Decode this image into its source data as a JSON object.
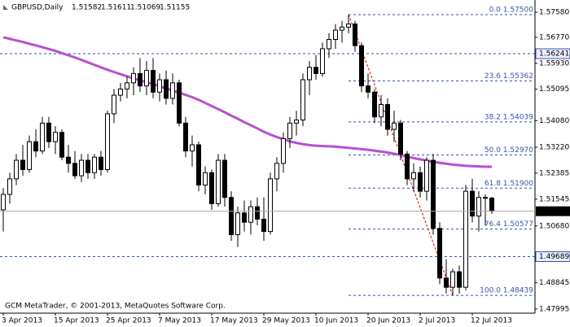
{
  "chart_data": {
    "type": "candlestick",
    "title": "GBPUSD,Daily",
    "footer": "GCM MetaTrader, © 2001-2013, MetaQuotes Software Corp.",
    "categories": [
      "3 Apr 2013",
      null,
      null,
      null,
      null,
      null,
      null,
      null,
      "15 Apr 2013",
      null,
      null,
      null,
      null,
      null,
      null,
      null,
      "25 Apr 2013",
      null,
      null,
      null,
      null,
      null,
      null,
      null,
      "7 May 2013",
      null,
      null,
      null,
      null,
      null,
      null,
      null,
      "17 May 2013",
      null,
      null,
      null,
      null,
      null,
      null,
      null,
      "29 May 2013",
      null,
      null,
      null,
      null,
      null,
      null,
      null,
      "10 Jun 2013",
      null,
      null,
      null,
      null,
      null,
      null,
      null,
      "20 Jun 2013",
      null,
      null,
      null,
      null,
      null,
      null,
      null,
      "2 Jul 2013",
      null,
      null,
      null,
      null,
      null,
      null,
      null,
      "12 Jul 2013",
      null,
      null,
      null
    ],
    "open": [
      1.512,
      1.517,
      1.522,
      1.528,
      1.525,
      1.534,
      1.531,
      1.54,
      1.534,
      1.537,
      1.529,
      1.527,
      1.523,
      1.528,
      1.524,
      1.529,
      1.525,
      1.543,
      1.549,
      1.551,
      1.553,
      1.556,
      1.552,
      1.557,
      1.55,
      1.554,
      1.548,
      1.553,
      1.54,
      1.531,
      1.533,
      1.52,
      1.524,
      1.514,
      1.528,
      1.516,
      1.504,
      1.511,
      1.508,
      1.513,
      1.509,
      1.505,
      1.522,
      1.527,
      1.535,
      1.54,
      1.541,
      1.554,
      1.558,
      1.556,
      1.564,
      1.567,
      1.57,
      1.571,
      1.572,
      1.565,
      1.552,
      1.55,
      1.542,
      1.546,
      1.538,
      1.54,
      1.53,
      1.522,
      1.524,
      1.518,
      1.528,
      1.506,
      1.49,
      1.487,
      1.492,
      1.487,
      1.518,
      1.51,
      1.516,
      1.51582
    ],
    "high": [
      1.519,
      1.524,
      1.53,
      1.533,
      1.536,
      1.538,
      1.542,
      1.542,
      1.539,
      1.538,
      1.533,
      1.531,
      1.53,
      1.53,
      1.53,
      1.531,
      1.544,
      1.551,
      1.553,
      1.555,
      1.558,
      1.561,
      1.56,
      1.561,
      1.556,
      1.557,
      1.556,
      1.554,
      1.542,
      1.536,
      1.534,
      1.526,
      1.525,
      1.53,
      1.53,
      1.518,
      1.513,
      1.515,
      1.515,
      1.516,
      1.516,
      1.524,
      1.529,
      1.537,
      1.542,
      1.544,
      1.556,
      1.56,
      1.562,
      1.566,
      1.569,
      1.572,
      1.573,
      1.575,
      1.573,
      1.566,
      1.556,
      1.551,
      1.549,
      1.548,
      1.544,
      1.541,
      1.531,
      1.527,
      1.526,
      1.529,
      1.53,
      1.508,
      1.496,
      1.493,
      1.494,
      1.52,
      1.522,
      1.518,
      1.517,
      1.51611
    ],
    "low": [
      1.505,
      1.514,
      1.52,
      1.523,
      1.524,
      1.529,
      1.53,
      1.532,
      1.53,
      1.528,
      1.524,
      1.522,
      1.521,
      1.522,
      1.522,
      1.523,
      1.524,
      1.54,
      1.547,
      1.548,
      1.549,
      1.55,
      1.549,
      1.548,
      1.547,
      1.546,
      1.546,
      1.539,
      1.529,
      1.526,
      1.518,
      1.517,
      1.512,
      1.513,
      1.513,
      1.502,
      1.5,
      1.505,
      1.504,
      1.507,
      1.502,
      1.504,
      1.518,
      1.524,
      1.532,
      1.536,
      1.539,
      1.549,
      1.554,
      1.555,
      1.561,
      1.564,
      1.566,
      1.569,
      1.563,
      1.55,
      1.548,
      1.54,
      1.539,
      1.536,
      1.534,
      1.528,
      1.52,
      1.518,
      1.516,
      1.515,
      1.504,
      1.488,
      1.485,
      1.48439,
      1.485,
      1.486,
      1.508,
      1.505,
      1.507,
      1.51069
    ],
    "close": [
      1.517,
      1.522,
      1.528,
      1.525,
      1.534,
      1.531,
      1.54,
      1.534,
      1.537,
      1.529,
      1.527,
      1.523,
      1.528,
      1.524,
      1.529,
      1.525,
      1.543,
      1.549,
      1.551,
      1.553,
      1.556,
      1.552,
      1.557,
      1.55,
      1.554,
      1.548,
      1.553,
      1.54,
      1.531,
      1.533,
      1.52,
      1.524,
      1.514,
      1.528,
      1.516,
      1.504,
      1.511,
      1.508,
      1.513,
      1.509,
      1.505,
      1.522,
      1.527,
      1.535,
      1.54,
      1.541,
      1.554,
      1.558,
      1.556,
      1.564,
      1.567,
      1.57,
      1.571,
      1.572,
      1.565,
      1.552,
      1.55,
      1.542,
      1.546,
      1.538,
      1.54,
      1.53,
      1.522,
      1.524,
      1.518,
      1.528,
      1.506,
      1.49,
      1.487,
      1.492,
      1.487,
      1.518,
      1.51,
      1.516,
      1.5158,
      1.51155
    ],
    "moving_average": {
      "color": "#b84fd0",
      "values": [
        1.5677,
        1.5672,
        1.5667,
        1.5662,
        1.5656,
        1.5651,
        1.5645,
        1.5639,
        1.5633,
        1.5626,
        1.5619,
        1.5612,
        1.5604,
        1.5596,
        1.5588,
        1.558,
        1.5572,
        1.5565,
        1.5558,
        1.5551,
        1.5544,
        1.5538,
        1.5532,
        1.5526,
        1.5519,
        1.5512,
        1.5505,
        1.5498,
        1.5491,
        1.5484,
        1.5475,
        1.5465,
        1.5455,
        1.5445,
        1.5435,
        1.5424,
        1.5414,
        1.5403,
        1.5393,
        1.5383,
        1.5372,
        1.5363,
        1.5355,
        1.5348,
        1.5341,
        1.5336,
        1.5332,
        1.5329,
        1.5327,
        1.5326,
        1.5325,
        1.5324,
        1.5322,
        1.532,
        1.5318,
        1.5316,
        1.5314,
        1.5311,
        1.5308,
        1.5305,
        1.5301,
        1.5297,
        1.5292,
        1.5287,
        1.5283,
        1.5279,
        1.5275,
        1.5272,
        1.5269,
        1.5266,
        1.5264,
        1.5262,
        1.5261,
        1.526,
        1.5259,
        1.5259
      ]
    },
    "bull_color": "#ffffff",
    "bear_color": "#000000",
    "fib_levels": [
      {
        "value": 1.575,
        "label": "0.0 1.57500"
      },
      {
        "value": 1.55362,
        "label": "23.6 1.55362"
      },
      {
        "value": 1.54039,
        "label": "38.2 1.54039"
      },
      {
        "value": 1.5297,
        "label": "50.0 1.52970"
      },
      {
        "value": 1.519,
        "label": "61.8 1.51900"
      },
      {
        "value": 1.50577,
        "label": "76.4 1.50577"
      },
      {
        "value": 1.48439,
        "label": "100.0 1.48439"
      }
    ],
    "hlines": [
      1.56241,
      1.49689
    ],
    "ylim": [
      1.47864,
      1.57974
    ],
    "yticks": [
      {
        "value": 1.5758,
        "label": "1.57580"
      },
      {
        "value": 1.5677,
        "label": "1.56770"
      },
      {
        "value": 1.5593,
        "label": "1.55930"
      },
      1.55095,
      {
        "value": 1.5408,
        "label": "1.54080"
      },
      {
        "value": 1.5322,
        "label": "1.53220"
      },
      1.52385,
      1.51545,
      {
        "value": 1.5068,
        "label": "1.50680"
      },
      1.48845,
      1.47995
    ],
    "grid": false
  }
}
